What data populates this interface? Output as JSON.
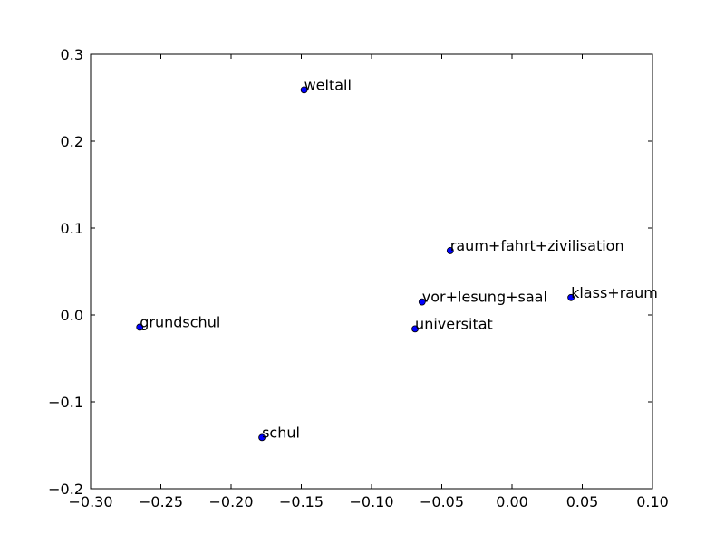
{
  "chart_data": {
    "type": "scatter",
    "title": "",
    "xlabel": "",
    "ylabel": "",
    "xlim": [
      -0.3,
      0.1
    ],
    "ylim": [
      -0.2,
      0.3
    ],
    "grid": false,
    "marker_color": "#0000ff",
    "marker_edge_color": "#000000",
    "x_ticks": [
      {
        "value": -0.3,
        "label": "−0.30"
      },
      {
        "value": -0.25,
        "label": "−0.25"
      },
      {
        "value": -0.2,
        "label": "−0.20"
      },
      {
        "value": -0.15,
        "label": "−0.15"
      },
      {
        "value": -0.1,
        "label": "−0.10"
      },
      {
        "value": -0.05,
        "label": "−0.05"
      },
      {
        "value": 0.0,
        "label": "0.00"
      },
      {
        "value": 0.05,
        "label": "0.05"
      },
      {
        "value": 0.1,
        "label": "0.10"
      }
    ],
    "y_ticks": [
      {
        "value": -0.2,
        "label": "−0.2"
      },
      {
        "value": -0.1,
        "label": "−0.1"
      },
      {
        "value": 0.0,
        "label": "0.0"
      },
      {
        "value": 0.1,
        "label": "0.1"
      },
      {
        "value": 0.2,
        "label": "0.2"
      },
      {
        "value": 0.3,
        "label": "0.3"
      }
    ],
    "points": [
      {
        "label": "weltall",
        "x": -0.148,
        "y": 0.259
      },
      {
        "label": "raum+fahrt+zivilisation",
        "x": -0.044,
        "y": 0.074
      },
      {
        "label": "klass+raum",
        "x": 0.042,
        "y": 0.02
      },
      {
        "label": "vor+lesung+saal",
        "x": -0.064,
        "y": 0.015
      },
      {
        "label": "grundschul",
        "x": -0.265,
        "y": -0.014
      },
      {
        "label": "universitat",
        "x": -0.069,
        "y": -0.016
      },
      {
        "label": "schul",
        "x": -0.178,
        "y": -0.141
      }
    ]
  }
}
